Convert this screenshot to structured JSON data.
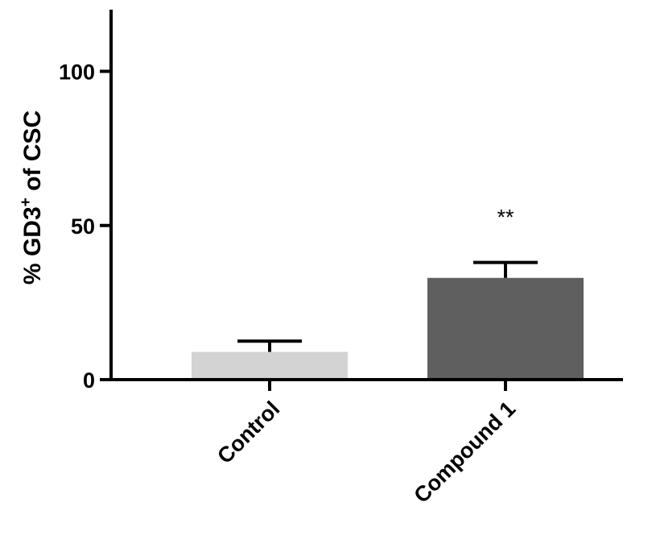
{
  "chart_data": {
    "type": "bar",
    "title": "",
    "xlabel": "",
    "ylabel": {
      "pre": "% GD3",
      "sup": "+",
      "post": " of CSC"
    },
    "ylim": [
      0,
      120
    ],
    "yticks": [
      0,
      50,
      100
    ],
    "grid": false,
    "categories": [
      "Control",
      "Compound 1"
    ],
    "values": [
      9,
      33
    ],
    "errors": [
      3.5,
      5
    ],
    "colors": [
      "#d3d3d3",
      "#5f5f5f"
    ],
    "annotations": [
      "",
      "**"
    ]
  }
}
